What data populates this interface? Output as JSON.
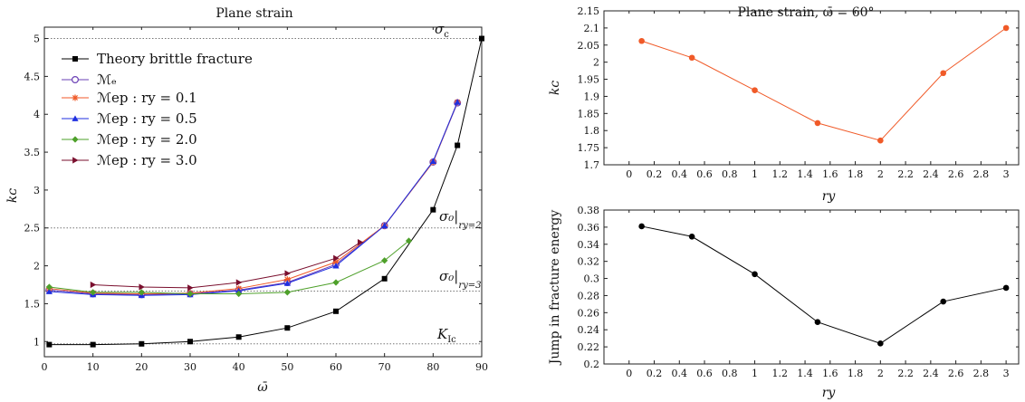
{
  "figure": {
    "colors": {
      "theory": "#000000",
      "me": "#6a3fb5",
      "ry01": "#f05a28",
      "ry05": "#1f2fe0",
      "ry20": "#4ea02a",
      "ry30": "#7a0f2e",
      "guide": "#777777",
      "kc_line": "#f05a28",
      "jump_line": "#000000"
    }
  },
  "chart_data": [
    {
      "type": "line",
      "title": "Plane strain",
      "xlabel": "ω̄",
      "ylabel": "kᴄ",
      "xlim": [
        0,
        90
      ],
      "ylim": [
        0.8,
        5.15
      ],
      "xticks": [
        0,
        10,
        20,
        30,
        40,
        50,
        60,
        70,
        80,
        90
      ],
      "yticks": [
        1,
        1.5,
        2,
        2.5,
        3,
        3.5,
        4,
        4.5,
        5
      ],
      "ytick_labels": [
        "1",
        "1.5",
        "2",
        "2.5",
        "3",
        "3.5",
        "4",
        "4.5",
        "5"
      ],
      "series": [
        {
          "key": "theory",
          "name": "Theory brittle fracture",
          "marker": "square",
          "x": [
            1,
            10,
            20,
            30,
            40,
            50,
            60,
            70,
            80,
            85,
            90
          ],
          "y": [
            0.96,
            0.96,
            0.97,
            1.0,
            1.06,
            1.18,
            1.4,
            1.83,
            2.74,
            3.59,
            5.0
          ]
        },
        {
          "key": "me",
          "name": "ℳₑ",
          "marker": "circle-open",
          "x": [
            1,
            10,
            20,
            30,
            40,
            50,
            60,
            70,
            80,
            85
          ],
          "y": [
            1.68,
            1.63,
            1.62,
            1.63,
            1.68,
            1.78,
            2.02,
            2.53,
            3.37,
            4.15
          ]
        },
        {
          "key": "ry01",
          "name": "ℳep : ry = 0.1",
          "marker": "asterisk",
          "x": [
            1,
            10,
            20,
            30,
            40,
            50,
            60,
            70,
            80,
            85
          ],
          "y": [
            1.7,
            1.64,
            1.63,
            1.64,
            1.7,
            1.82,
            2.05,
            2.53,
            3.37,
            4.16
          ]
        },
        {
          "key": "ry05",
          "name": "ℳep : ry = 0.5",
          "marker": "triangle",
          "x": [
            1,
            10,
            20,
            30,
            40,
            50,
            60,
            70,
            80,
            85
          ],
          "y": [
            1.66,
            1.62,
            1.61,
            1.62,
            1.67,
            1.77,
            2.0,
            2.53,
            3.38,
            4.16
          ]
        },
        {
          "key": "ry20",
          "name": "ℳep : ry = 2.0",
          "marker": "diamond",
          "x": [
            1,
            10,
            20,
            30,
            40,
            50,
            60,
            70,
            75
          ],
          "y": [
            1.72,
            1.65,
            1.65,
            1.63,
            1.63,
            1.65,
            1.78,
            2.07,
            2.33
          ]
        },
        {
          "key": "ry30",
          "name": "ℳep : ry = 3.0",
          "marker": "triangle-right",
          "x": [
            10,
            20,
            30,
            40,
            50,
            60,
            65
          ],
          "y": [
            1.75,
            1.72,
            1.71,
            1.78,
            1.9,
            2.1,
            2.31
          ]
        }
      ],
      "reference_lines": [
        {
          "y": 5.0,
          "label_main": "σ",
          "label_sub": "c"
        },
        {
          "y": 2.5,
          "label_main": "σ₀|",
          "label_sub": "ry=2"
        },
        {
          "y": 1.667,
          "label_main": "σ₀|",
          "label_sub": "ry=3"
        },
        {
          "y": 0.97,
          "label_main": "K",
          "label_sub": "Ic"
        }
      ]
    },
    {
      "type": "line",
      "title": "Plane strain, ω̄ = 60°",
      "xlabel": "ry",
      "ylabel": "kᴄ",
      "xlim": [
        -0.2,
        3.1
      ],
      "ylim": [
        1.7,
        2.15
      ],
      "xticks": [
        0,
        0.2,
        0.4,
        0.6,
        0.8,
        1,
        1.2,
        1.4,
        1.6,
        1.8,
        2,
        2.2,
        2.4,
        2.6,
        2.8,
        3
      ],
      "xtick_labels": [
        "0",
        "0.2",
        "0.4",
        "0.6",
        "0.8",
        "1",
        "1.2",
        "1.4",
        "1.6",
        "1.8",
        "2",
        "2.2",
        "2.4",
        "2.6",
        "2.8",
        "3"
      ],
      "yticks": [
        1.7,
        1.75,
        1.8,
        1.85,
        1.9,
        1.95,
        2,
        2.05,
        2.1,
        2.15
      ],
      "ytick_labels": [
        "1.7",
        "1.75",
        "1.8",
        "1.85",
        "1.9",
        "1.95",
        "2",
        "2.05",
        "2.1",
        "2.15"
      ],
      "x": [
        0.1,
        0.5,
        1.0,
        1.5,
        2.0,
        2.5,
        3.0
      ],
      "y": [
        2.062,
        2.013,
        1.918,
        1.822,
        1.771,
        1.968,
        2.1
      ]
    },
    {
      "type": "line",
      "title": "",
      "xlabel": "ry",
      "ylabel": "Jump in fracture energy",
      "xlim": [
        -0.2,
        3.1
      ],
      "ylim": [
        0.2,
        0.38
      ],
      "xticks": [
        0,
        0.2,
        0.4,
        0.6,
        0.8,
        1,
        1.2,
        1.4,
        1.6,
        1.8,
        2,
        2.2,
        2.4,
        2.6,
        2.8,
        3
      ],
      "xtick_labels": [
        "0",
        "0.2",
        "0.4",
        "0.6",
        "0.8",
        "1",
        "1.2",
        "1.4",
        "1.6",
        "1.8",
        "2",
        "2.2",
        "2.4",
        "2.6",
        "2.8",
        "3"
      ],
      "yticks": [
        0.2,
        0.22,
        0.24,
        0.26,
        0.28,
        0.3,
        0.32,
        0.34,
        0.36,
        0.38
      ],
      "ytick_labels": [
        "0.2",
        "0.22",
        "0.24",
        "0.26",
        "0.28",
        "0.3",
        "0.32",
        "0.34",
        "0.36",
        "0.38"
      ],
      "x": [
        0.1,
        0.5,
        1.0,
        1.5,
        2.0,
        2.5,
        3.0
      ],
      "y": [
        0.361,
        0.349,
        0.305,
        0.249,
        0.224,
        0.273,
        0.289
      ]
    }
  ]
}
